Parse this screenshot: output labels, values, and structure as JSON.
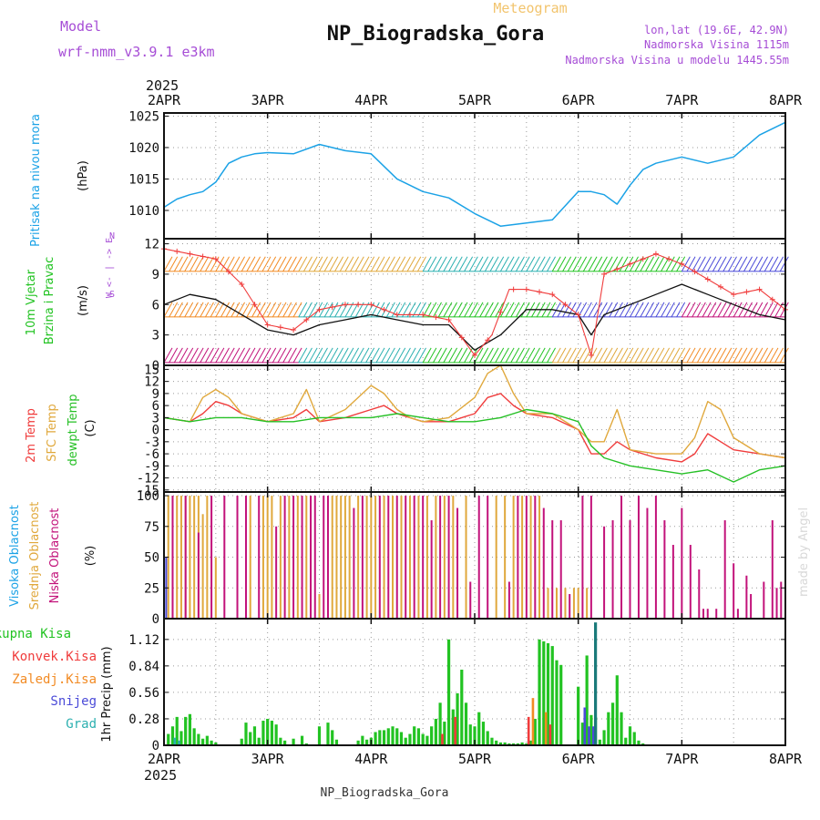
{
  "header": {
    "model_label": "Model",
    "model_value": "wrf-nmm_v3.9.1 e3km",
    "subtitle": "Meteogram",
    "title": "NP_Biogradska_Gora",
    "lonlat": "lon,lat (19.6E, 42.9N)",
    "altitude": "Nadmorska Visina 1115m",
    "model_altitude": "Nadmorska Visina u modelu 1445.55m",
    "year": "2025",
    "footer": "NP_Biogradska_Gora",
    "credit": "made by Angel"
  },
  "colors": {
    "purple": "#a64dd6",
    "title": "#111111",
    "subtitle": "#f2c46d",
    "cyan": "#1ba2e6",
    "green": "#22c322",
    "orange": "#f28b24",
    "red": "#f03c3c",
    "gold": "#e0a83c",
    "dewgreen": "#26c026",
    "magenta": "#c2127a",
    "blue": "#4b4bd8",
    "teal": "#2cb0b0",
    "olive": "#7a7a20",
    "darkteal": "#1a7a7a"
  },
  "chart_data": [
    {
      "type": "line",
      "name": "pressure",
      "title": "Pritisak na nivou mora",
      "ylabel": "(hPa)",
      "yticks": [
        1010,
        1015,
        1020,
        1025
      ],
      "ylim": [
        1005.5,
        1025.5
      ],
      "x_days": [
        "2APR",
        "3APR",
        "4APR",
        "5APR",
        "6APR",
        "7APR",
        "8APR"
      ],
      "x_hours": [
        0,
        3,
        6,
        9,
        12,
        15,
        18,
        21,
        24,
        30,
        36,
        42,
        48,
        54,
        60,
        66,
        72,
        78,
        84,
        90,
        96,
        99,
        102,
        105,
        108,
        111,
        114,
        120,
        126,
        132,
        138,
        144
      ],
      "values": [
        1010.5,
        1011.8,
        1012.5,
        1013.0,
        1014.5,
        1017.5,
        1018.5,
        1019.0,
        1019.2,
        1019.0,
        1020.5,
        1019.5,
        1019.0,
        1015.0,
        1013.0,
        1012.0,
        1009.5,
        1007.5,
        1008.0,
        1008.5,
        1013.0,
        1013.0,
        1012.5,
        1011.0,
        1014.0,
        1016.5,
        1017.5,
        1018.5,
        1017.5,
        1018.5,
        1022.0,
        1024.0
      ]
    },
    {
      "type": "line",
      "name": "wind",
      "title": "10m Vjetar Brzina i Pravac",
      "ylabel": "(m/s)",
      "compass": "W <- | -> E",
      "compass_n": "N",
      "compass_s": "S",
      "yticks": [
        0,
        3,
        6,
        9,
        12
      ],
      "ylim": [
        0,
        12.5
      ],
      "series": [
        {
          "name": "wind speed",
          "color": "#111111",
          "x_hours": [
            0,
            6,
            12,
            18,
            24,
            30,
            36,
            42,
            48,
            54,
            60,
            66,
            72,
            78,
            84,
            90,
            96,
            99,
            102,
            108,
            114,
            120,
            126,
            132,
            138,
            144
          ],
          "values": [
            6.0,
            7.0,
            6.5,
            5.0,
            3.5,
            3.0,
            4.0,
            4.5,
            5.0,
            4.5,
            4.0,
            4.0,
            1.5,
            3.0,
            5.5,
            5.5,
            5.0,
            3.0,
            5.0,
            6.0,
            7.0,
            8.0,
            7.0,
            6.0,
            5.0,
            4.5
          ]
        },
        {
          "name": "wind gust",
          "color": "#f03c3c",
          "x_hours": [
            0,
            6,
            12,
            18,
            24,
            30,
            36,
            42,
            48,
            54,
            60,
            66,
            72,
            76,
            80,
            84,
            90,
            96,
            99,
            102,
            108,
            114,
            120,
            126,
            132,
            138,
            144
          ],
          "values": [
            11.5,
            11.0,
            10.5,
            8.0,
            4.0,
            3.5,
            5.5,
            6.0,
            6.0,
            5.0,
            5.0,
            4.5,
            1.0,
            3.0,
            7.5,
            7.5,
            7.0,
            5.0,
            1.0,
            9.0,
            10.0,
            11.0,
            10.0,
            8.5,
            7.0,
            7.5,
            5.5
          ]
        }
      ]
    },
    {
      "type": "line",
      "name": "temperature",
      "title": [
        "2m Temp",
        "SFC Temp",
        "dewpt Temp"
      ],
      "ylabel": "(C)",
      "yticks": [
        -15,
        -12,
        -9,
        -6,
        -3,
        0,
        3,
        6,
        9,
        12,
        15
      ],
      "ylim": [
        -15.5,
        16
      ],
      "series": [
        {
          "name": "2m Temp",
          "color": "#f03c3c",
          "x_hours": [
            0,
            6,
            9,
            12,
            15,
            18,
            24,
            30,
            33,
            36,
            42,
            48,
            51,
            54,
            57,
            60,
            66,
            72,
            75,
            78,
            81,
            84,
            90,
            96,
            99,
            102,
            105,
            108,
            114,
            120,
            123,
            126,
            129,
            132,
            138,
            144
          ],
          "values": [
            3,
            2,
            4,
            7,
            6,
            4,
            2,
            3,
            5,
            2,
            3,
            5,
            6,
            4,
            3,
            2,
            2,
            4,
            8,
            9,
            6,
            4,
            3,
            0,
            -6,
            -6,
            -3,
            -5,
            -7,
            -8,
            -6,
            -1,
            -3,
            -5,
            -6,
            -7
          ]
        },
        {
          "name": "SFC Temp",
          "color": "#e0a83c",
          "x_hours": [
            0,
            6,
            9,
            12,
            15,
            18,
            24,
            30,
            33,
            36,
            42,
            48,
            51,
            54,
            57,
            60,
            66,
            72,
            75,
            78,
            81,
            84,
            90,
            96,
            99,
            102,
            105,
            108,
            114,
            120,
            123,
            126,
            129,
            132,
            138,
            144
          ],
          "values": [
            3,
            2,
            8,
            10,
            8,
            4,
            2,
            4,
            10,
            2,
            5,
            11,
            9,
            5,
            3,
            2,
            3,
            8,
            14,
            16,
            9,
            4,
            4,
            0,
            -3,
            -3,
            5,
            -5,
            -6,
            -6,
            -2,
            7,
            5,
            -2,
            -6,
            -7
          ]
        },
        {
          "name": "dewpt Temp",
          "color": "#26c026",
          "x_hours": [
            0,
            6,
            12,
            18,
            24,
            30,
            36,
            42,
            48,
            54,
            60,
            66,
            72,
            78,
            84,
            90,
            96,
            99,
            102,
            108,
            114,
            120,
            126,
            132,
            138,
            144
          ],
          "values": [
            3,
            2,
            3,
            3,
            2,
            2,
            3,
            3,
            3,
            4,
            3,
            2,
            2,
            3,
            5,
            4,
            2,
            -4,
            -7,
            -9,
            -10,
            -11,
            -10,
            -13,
            -10,
            -9
          ]
        }
      ]
    },
    {
      "type": "bar",
      "name": "cloud cover",
      "title": [
        "Visoka Oblacnost",
        "Srednja Oblacnost",
        "Niska Oblacnost"
      ],
      "ylabel": "(%)",
      "yticks": [
        0,
        25,
        50,
        75,
        100
      ],
      "ylim": [
        0,
        103
      ],
      "series": [
        {
          "name": "Visoka Oblacnost",
          "color": "#4b4bd8",
          "x_hours": [
            0.5
          ],
          "values": [
            50
          ]
        },
        {
          "name": "Srednja Oblacnost",
          "color": "#e0a83c",
          "x_hours": [
            1,
            2,
            3,
            4,
            5,
            6,
            7,
            8,
            9,
            10,
            12,
            20,
            23,
            24,
            25,
            27,
            29,
            31,
            33,
            36,
            39,
            40,
            41,
            42,
            43,
            45,
            47,
            48,
            49,
            51,
            53,
            55,
            57,
            59,
            61,
            63,
            65,
            67,
            70,
            77,
            79,
            81,
            83,
            85,
            87,
            89,
            91,
            93,
            95,
            96,
            98
          ],
          "values": [
            100,
            100,
            100,
            100,
            100,
            100,
            100,
            100,
            85,
            100,
            50,
            100,
            100,
            100,
            100,
            100,
            100,
            100,
            100,
            20,
            100,
            100,
            100,
            100,
            100,
            100,
            100,
            100,
            100,
            100,
            100,
            100,
            100,
            100,
            100,
            100,
            100,
            100,
            100,
            100,
            100,
            100,
            100,
            100,
            100,
            25,
            25,
            25,
            25,
            25,
            25
          ]
        },
        {
          "name": "Niska Oblacnost",
          "color": "#c2127a",
          "x_hours": [
            2,
            5,
            8,
            11,
            14,
            17,
            19,
            22,
            26,
            28,
            30,
            32,
            34,
            35,
            37,
            38,
            44,
            46,
            50,
            52,
            54,
            56,
            58,
            60,
            62,
            64,
            66,
            68,
            71,
            73,
            75,
            80,
            82,
            84,
            86,
            88,
            90,
            92,
            94,
            97,
            99,
            102,
            104,
            106,
            108,
            110,
            112,
            114,
            116,
            118,
            120,
            122,
            124,
            125,
            126,
            128,
            130,
            132,
            133,
            135,
            136,
            139,
            141,
            142,
            143
          ],
          "values": [
            100,
            100,
            70,
            100,
            100,
            100,
            100,
            100,
            75,
            100,
            100,
            100,
            100,
            100,
            100,
            100,
            90,
            100,
            100,
            100,
            100,
            100,
            100,
            100,
            80,
            100,
            100,
            90,
            30,
            100,
            100,
            30,
            100,
            100,
            100,
            90,
            80,
            80,
            20,
            100,
            100,
            75,
            80,
            100,
            80,
            100,
            90,
            100,
            80,
            60,
            90,
            60,
            40,
            8,
            8,
            8,
            80,
            45,
            8,
            35,
            20,
            30,
            80,
            25,
            30
          ]
        }
      ]
    },
    {
      "type": "bar",
      "name": "precipitation",
      "title": [
        "Ukupna Kisa",
        "Konvek.Kisa",
        "Zaledj.Kisa",
        "Snijeg",
        "Grad"
      ],
      "ylabel": "1hr Precip (mm)",
      "yticks": [
        0,
        0.28,
        0.56,
        0.84,
        1.12
      ],
      "ylim": [
        0,
        1.34
      ],
      "series": [
        {
          "name": "Ukupna Kisa",
          "color": "#22c322",
          "x_hours": [
            1,
            2,
            3,
            4,
            5,
            6,
            7,
            8,
            9,
            10,
            11,
            12,
            18,
            19,
            20,
            21,
            22,
            23,
            24,
            25,
            26,
            27,
            28,
            30,
            32,
            33,
            36,
            38,
            39,
            40,
            45,
            46,
            47,
            48,
            49,
            50,
            51,
            52,
            53,
            54,
            55,
            56,
            57,
            58,
            59,
            60,
            61,
            62,
            63,
            64,
            65,
            66,
            67,
            68,
            69,
            70,
            71,
            72,
            73,
            74,
            75,
            76,
            77,
            78,
            79,
            80,
            81,
            82,
            83,
            84,
            85,
            86,
            87,
            88,
            89,
            90,
            91,
            92,
            96,
            97,
            98,
            99,
            100,
            101,
            102,
            103,
            104,
            105,
            106,
            107,
            108,
            109,
            110,
            111
          ],
          "values": [
            0.12,
            0.2,
            0.3,
            0.15,
            0.3,
            0.33,
            0.18,
            0.12,
            0.07,
            0.1,
            0.05,
            0.03,
            0.07,
            0.24,
            0.14,
            0.2,
            0.08,
            0.26,
            0.28,
            0.26,
            0.22,
            0.08,
            0.05,
            0.07,
            0.1,
            0.02,
            0.2,
            0.24,
            0.16,
            0.06,
            0.05,
            0.1,
            0.06,
            0.08,
            0.14,
            0.16,
            0.16,
            0.18,
            0.2,
            0.18,
            0.14,
            0.08,
            0.12,
            0.2,
            0.18,
            0.12,
            0.1,
            0.2,
            0.28,
            0.45,
            0.25,
            1.12,
            0.38,
            0.55,
            0.8,
            0.45,
            0.22,
            0.2,
            0.35,
            0.25,
            0.15,
            0.08,
            0.05,
            0.03,
            0.03,
            0.02,
            0.02,
            0.02,
            0.03,
            0.02,
            0.05,
            0.28,
            1.12,
            1.1,
            1.08,
            1.05,
            0.9,
            0.85,
            0.62,
            0.24,
            0.95,
            0.32,
            0.3,
            0.06,
            0.16,
            0.35,
            0.45,
            0.74,
            0.35,
            0.08,
            0.2,
            0.14,
            0.05,
            0.02
          ]
        },
        {
          "name": "Konvek.Kisa",
          "color": "#f03c3c",
          "x_hours": [
            64.5,
            67.5,
            84.5,
            89.5
          ],
          "values": [
            0.12,
            0.3,
            0.3,
            0.22
          ]
        },
        {
          "name": "Zaledj.Kisa",
          "color": "#f28b24",
          "x_hours": [
            85.5,
            88.5
          ],
          "values": [
            0.5,
            0.35
          ]
        },
        {
          "name": "Snijeg",
          "color": "#4b4bd8",
          "x_hours": [
            97.5,
            98.5,
            99.5
          ],
          "values": [
            0.4,
            0.2,
            0.2
          ]
        },
        {
          "name": "Grad",
          "color": "#2cb0b0",
          "x_hours": [
            2.5,
            3.5
          ],
          "values": [
            0.08,
            0.05
          ]
        }
      ]
    }
  ]
}
